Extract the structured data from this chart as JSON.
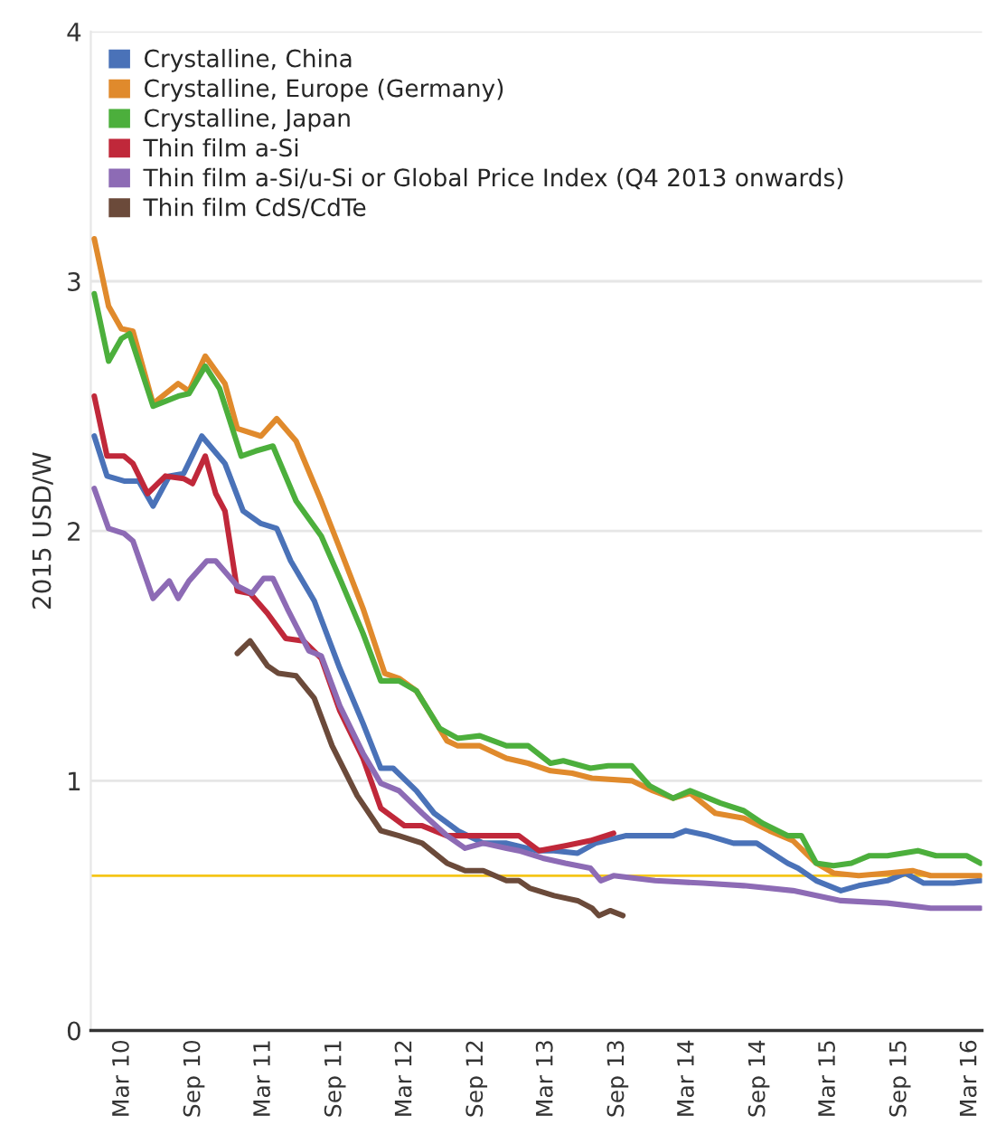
{
  "chart_data": {
    "type": "line",
    "ylabel": "2015 USD/W",
    "xlim": [
      "2009-12-09",
      "2016-04-01"
    ],
    "ylim": [
      0,
      4
    ],
    "yticks": [
      0,
      1,
      2,
      3,
      4
    ],
    "xticks": [
      {
        "value": "2010-03-01",
        "label": "Mar 10"
      },
      {
        "value": "2010-09-01",
        "label": "Sep 10"
      },
      {
        "value": "2011-03-01",
        "label": "Mar 11"
      },
      {
        "value": "2011-09-01",
        "label": "Sep 11"
      },
      {
        "value": "2012-03-01",
        "label": "Mar 12"
      },
      {
        "value": "2012-09-01",
        "label": "Sep 12"
      },
      {
        "value": "2013-03-01",
        "label": "Mar 13"
      },
      {
        "value": "2013-09-01",
        "label": "Sep 13"
      },
      {
        "value": "2014-03-01",
        "label": "Mar 14"
      },
      {
        "value": "2014-09-01",
        "label": "Sep 14"
      },
      {
        "value": "2015-03-01",
        "label": "Mar 15"
      },
      {
        "value": "2015-09-01",
        "label": "Sep 15"
      },
      {
        "value": "2016-03-01",
        "label": "Mar 16"
      }
    ],
    "grid": "y",
    "legend": "top left",
    "marker": "none",
    "line_style": "solid",
    "ref_lines": [
      {
        "axis": "y",
        "value": 0.62,
        "color": "#f5c518"
      }
    ],
    "series": [
      {
        "name": "Crystalline, China",
        "color": "#4a72b8",
        "x": [
          "2009-12-18",
          "2010-01-20",
          "2010-03-05",
          "2010-04-12",
          "2010-05-19",
          "2010-06-30",
          "2010-08-06",
          "2010-09-22",
          "2010-11-21",
          "2011-01-07",
          "2011-02-22",
          "2011-04-04",
          "2011-05-10",
          "2011-07-10",
          "2011-09-14",
          "2011-11-13",
          "2011-12-29",
          "2012-01-30",
          "2012-03-30",
          "2012-05-15",
          "2012-07-15",
          "2012-09-19",
          "2012-11-18",
          "2013-02-06",
          "2013-03-21",
          "2013-05-21",
          "2013-07-06",
          "2013-09-24",
          "2013-11-23",
          "2014-01-23",
          "2014-02-24",
          "2014-04-24",
          "2014-06-28",
          "2014-08-27",
          "2014-11-15",
          "2014-12-12",
          "2015-01-28",
          "2015-04-02",
          "2015-05-18",
          "2015-07-31",
          "2015-09-16",
          "2015-11-02",
          "2016-01-19",
          "2016-03-28"
        ],
        "values": [
          2.38,
          2.22,
          2.2,
          2.2,
          2.1,
          2.22,
          2.23,
          2.38,
          2.27,
          2.08,
          2.03,
          2.01,
          1.88,
          1.72,
          1.45,
          1.23,
          1.05,
          1.05,
          0.96,
          0.87,
          0.8,
          0.75,
          0.75,
          0.72,
          0.72,
          0.71,
          0.75,
          0.78,
          0.78,
          0.78,
          0.8,
          0.78,
          0.75,
          0.75,
          0.67,
          0.65,
          0.6,
          0.56,
          0.58,
          0.6,
          0.63,
          0.59,
          0.59,
          0.6
        ]
      },
      {
        "name": "Crystalline, Europe (Germany)",
        "color": "#e08a2c",
        "x": [
          "2009-12-18",
          "2010-01-24",
          "2010-02-26",
          "2010-03-28",
          "2010-05-19",
          "2010-07-23",
          "2010-08-20",
          "2010-10-01",
          "2010-11-21",
          "2010-12-23",
          "2011-02-22",
          "2011-04-04",
          "2011-05-24",
          "2011-07-28",
          "2011-09-14",
          "2011-11-13",
          "2012-01-08",
          "2012-02-14",
          "2012-03-30",
          "2012-06-17",
          "2012-07-15",
          "2012-09-10",
          "2012-11-18",
          "2013-01-13",
          "2013-03-12",
          "2013-05-07",
          "2013-06-27",
          "2013-10-08",
          "2013-12-02",
          "2014-01-23",
          "2014-03-08",
          "2014-05-12",
          "2014-07-25",
          "2014-09-29",
          "2014-11-29",
          "2015-01-28",
          "2015-03-14",
          "2015-05-18",
          "2015-07-31",
          "2015-10-04",
          "2015-11-20",
          "2016-01-19",
          "2016-03-28"
        ],
        "values": [
          3.17,
          2.9,
          2.81,
          2.8,
          2.51,
          2.59,
          2.56,
          2.7,
          2.59,
          2.41,
          2.38,
          2.45,
          2.36,
          2.12,
          1.93,
          1.69,
          1.43,
          1.41,
          1.36,
          1.16,
          1.14,
          1.14,
          1.09,
          1.07,
          1.04,
          1.03,
          1.01,
          1.0,
          0.96,
          0.93,
          0.95,
          0.87,
          0.85,
          0.8,
          0.76,
          0.67,
          0.63,
          0.62,
          0.63,
          0.64,
          0.62,
          0.62,
          0.62
        ]
      },
      {
        "name": "Crystalline, Japan",
        "color": "#4caf3c",
        "x": [
          "2009-12-18",
          "2010-01-24",
          "2010-02-26",
          "2010-03-19",
          "2010-05-19",
          "2010-07-23",
          "2010-08-20",
          "2010-10-01",
          "2010-11-07",
          "2011-01-02",
          "2011-02-08",
          "2011-03-25",
          "2011-05-24",
          "2011-07-28",
          "2011-09-14",
          "2011-11-13",
          "2011-12-29",
          "2012-02-14",
          "2012-03-30",
          "2012-05-29",
          "2012-07-15",
          "2012-09-10",
          "2012-11-18",
          "2013-01-13",
          "2013-03-12",
          "2013-04-14",
          "2013-06-23",
          "2013-08-08",
          "2013-10-08",
          "2013-11-23",
          "2014-01-23",
          "2014-03-08",
          "2014-05-26",
          "2014-07-25",
          "2014-09-11",
          "2014-11-15",
          "2014-12-21",
          "2015-01-28",
          "2015-03-14",
          "2015-04-29",
          "2015-06-15",
          "2015-07-31",
          "2015-10-18",
          "2015-12-04",
          "2016-02-21",
          "2016-03-28"
        ],
        "values": [
          2.95,
          2.68,
          2.77,
          2.79,
          2.5,
          2.54,
          2.55,
          2.66,
          2.57,
          2.3,
          2.32,
          2.34,
          2.12,
          1.98,
          1.81,
          1.59,
          1.4,
          1.4,
          1.36,
          1.21,
          1.17,
          1.18,
          1.14,
          1.14,
          1.07,
          1.08,
          1.05,
          1.06,
          1.06,
          0.98,
          0.93,
          0.96,
          0.91,
          0.88,
          0.83,
          0.78,
          0.78,
          0.67,
          0.66,
          0.67,
          0.7,
          0.7,
          0.72,
          0.7,
          0.7,
          0.67
        ]
      },
      {
        "name": "Thin film a-Si",
        "color": "#c0283a",
        "x": [
          "2009-12-18",
          "2010-01-20",
          "2010-03-05",
          "2010-03-28",
          "2010-05-05",
          "2010-06-20",
          "2010-08-06",
          "2010-08-29",
          "2010-10-01",
          "2010-10-28",
          "2010-11-21",
          "2010-12-23",
          "2011-01-25",
          "2011-03-11",
          "2011-04-27",
          "2011-06-12",
          "2011-07-28",
          "2011-09-14",
          "2011-11-13",
          "2011-12-29",
          "2012-02-28",
          "2012-04-14",
          "2012-06-17",
          "2012-08-17",
          "2012-09-19",
          "2012-12-20",
          "2013-02-10",
          "2013-04-19",
          "2013-06-23",
          "2013-08-22"
        ],
        "values": [
          2.54,
          2.3,
          2.3,
          2.27,
          2.15,
          2.22,
          2.21,
          2.19,
          2.3,
          2.15,
          2.08,
          1.76,
          1.75,
          1.67,
          1.57,
          1.56,
          1.49,
          1.28,
          1.09,
          0.89,
          0.82,
          0.82,
          0.78,
          0.78,
          0.78,
          0.78,
          0.72,
          0.74,
          0.76,
          0.79
        ]
      },
      {
        "name": "Thin film a-Si/u-Si or Global Price Index (Q4 2013 onwards)",
        "color": "#8d6bb5",
        "x": [
          "2009-12-18",
          "2010-01-24",
          "2010-03-05",
          "2010-03-28",
          "2010-05-19",
          "2010-06-30",
          "2010-07-23",
          "2010-08-20",
          "2010-10-05",
          "2010-10-28",
          "2010-12-23",
          "2011-01-30",
          "2011-03-01",
          "2011-03-25",
          "2011-05-01",
          "2011-06-26",
          "2011-07-28",
          "2011-09-14",
          "2011-11-13",
          "2011-12-29",
          "2012-02-14",
          "2012-04-14",
          "2012-06-17",
          "2012-08-03",
          "2012-09-19",
          "2012-11-18",
          "2012-12-20",
          "2013-02-20",
          "2013-04-19",
          "2013-06-23",
          "2013-07-20",
          "2013-08-22",
          "2013-12-07",
          "2014-04-10",
          "2014-07-25",
          "2014-11-29",
          "2015-04-02",
          "2015-07-31",
          "2015-11-20",
          "2016-03-28"
        ],
        "values": [
          2.17,
          2.01,
          1.99,
          1.96,
          1.73,
          1.8,
          1.73,
          1.8,
          1.88,
          1.88,
          1.78,
          1.75,
          1.81,
          1.81,
          1.69,
          1.52,
          1.5,
          1.3,
          1.11,
          0.99,
          0.96,
          0.87,
          0.78,
          0.73,
          0.75,
          0.73,
          0.72,
          0.69,
          0.67,
          0.65,
          0.6,
          0.62,
          0.6,
          0.59,
          0.58,
          0.56,
          0.52,
          0.51,
          0.49,
          0.49
        ]
      },
      {
        "name": "Thin film CdS/CdTe",
        "color": "#6b4a3a",
        "x": [
          "2010-12-23",
          "2011-01-25",
          "2011-03-11",
          "2011-04-08",
          "2011-05-24",
          "2011-07-10",
          "2011-08-25",
          "2011-10-29",
          "2011-12-29",
          "2012-02-14",
          "2012-04-14",
          "2012-06-17",
          "2012-08-03",
          "2012-09-19",
          "2012-11-18",
          "2012-12-20",
          "2013-01-17",
          "2013-03-21",
          "2013-05-21",
          "2013-06-27",
          "2013-07-15",
          "2013-08-13",
          "2013-09-15"
        ],
        "values": [
          1.51,
          1.56,
          1.46,
          1.43,
          1.42,
          1.33,
          1.14,
          0.94,
          0.8,
          0.78,
          0.75,
          0.67,
          0.64,
          0.64,
          0.6,
          0.6,
          0.57,
          0.54,
          0.52,
          0.49,
          0.46,
          0.48,
          0.46
        ]
      }
    ]
  }
}
